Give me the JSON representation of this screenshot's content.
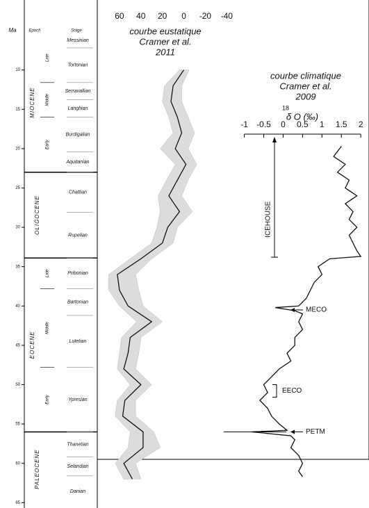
{
  "stratigraphy": {
    "headers": {
      "age": "Ma",
      "epoch": "Epoch",
      "stage": "Stage"
    },
    "ylim": [
      4.2,
      65.5
    ],
    "ticks": [
      10,
      15,
      20,
      25,
      30,
      35,
      40,
      45,
      50,
      55,
      60,
      65
    ],
    "epochs": [
      {
        "name": "MIOCENE",
        "top": 5.3,
        "bottom": 23,
        "subs": [
          {
            "name": "Late",
            "top": 5.3,
            "bottom": 11.6
          },
          {
            "name": "Middle",
            "top": 11.6,
            "bottom": 16
          },
          {
            "name": "Early",
            "top": 16,
            "bottom": 23
          }
        ]
      },
      {
        "name": "OLIGOCENE",
        "top": 23,
        "bottom": 33.9,
        "subs": []
      },
      {
        "name": "EOCENE",
        "top": 33.9,
        "bottom": 56,
        "subs": [
          {
            "name": "Late",
            "top": 33.9,
            "bottom": 37.8
          },
          {
            "name": "Middle",
            "top": 37.8,
            "bottom": 47.8
          },
          {
            "name": "Early",
            "top": 47.8,
            "bottom": 56
          }
        ]
      },
      {
        "name": "PALEOCENE",
        "top": 56,
        "bottom": 65.5,
        "subs": []
      }
    ],
    "stages": [
      {
        "name": "Messinian",
        "top": 5.3,
        "bottom": 7.2
      },
      {
        "name": "Tortonian",
        "top": 7.2,
        "bottom": 11.6
      },
      {
        "name": "Serravallian",
        "top": 11.6,
        "bottom": 13.8
      },
      {
        "name": "Langhian",
        "top": 13.8,
        "bottom": 16
      },
      {
        "name": "Burdigalian",
        "top": 16,
        "bottom": 20.4
      },
      {
        "name": "Aquitanian",
        "top": 20.4,
        "bottom": 23
      },
      {
        "name": "Chattian",
        "top": 23,
        "bottom": 28.1
      },
      {
        "name": "Rupelian",
        "top": 28.1,
        "bottom": 33.9
      },
      {
        "name": "Pribonian",
        "top": 33.9,
        "bottom": 37.8
      },
      {
        "name": "Bartonian",
        "top": 37.8,
        "bottom": 41.2
      },
      {
        "name": "Lutetian",
        "top": 41.2,
        "bottom": 47.8
      },
      {
        "name": "Ypresian",
        "top": 47.8,
        "bottom": 56
      },
      {
        "name": "Thanetian",
        "top": 56,
        "bottom": 59.2
      },
      {
        "name": "Selandian",
        "top": 59.2,
        "bottom": 61.6
      },
      {
        "name": "Danian",
        "top": 61.6,
        "bottom": 65.5
      }
    ]
  },
  "chart_data": [
    {
      "type": "line",
      "title": [
        "courbe eustatique",
        "Cramer et al.",
        "2011"
      ],
      "xlim": [
        70,
        -45
      ],
      "xticks": [
        60,
        40,
        20,
        0,
        -20,
        -40
      ],
      "color": "#111",
      "band_color": "#dcdcdc",
      "ages": [
        10,
        12,
        14,
        16,
        18,
        20,
        22,
        24,
        26,
        28,
        30,
        32,
        34,
        36,
        38,
        40,
        42,
        44,
        46,
        48,
        50,
        52,
        54,
        56,
        58,
        60,
        62
      ],
      "values": [
        0,
        10,
        12,
        6,
        2,
        8,
        -2,
        6,
        14,
        4,
        15,
        20,
        40,
        62,
        60,
        52,
        30,
        50,
        52,
        56,
        40,
        55,
        57,
        38,
        38,
        56,
        48
      ],
      "band_low": [
        -5,
        2,
        2,
        -4,
        -10,
        -4,
        -12,
        -4,
        2,
        -8,
        6,
        10,
        30,
        45,
        42,
        38,
        20,
        40,
        42,
        45,
        30,
        45,
        45,
        28,
        22,
        45,
        40
      ],
      "band_high": [
        4,
        18,
        20,
        14,
        10,
        22,
        8,
        16,
        24,
        22,
        25,
        30,
        50,
        70,
        70,
        60,
        44,
        58,
        60,
        62,
        50,
        62,
        64,
        50,
        52,
        64,
        56
      ]
    },
    {
      "type": "line",
      "title": [
        "courbe climatique",
        "Cramer et al.",
        "2009"
      ],
      "axis_label": {
        "superscript": "18",
        "text": "δ O (‰)"
      },
      "xlim": [
        -1.1,
        2.05
      ],
      "xticks": [
        -1,
        -0.5,
        0,
        0.5,
        1,
        1.5,
        2
      ],
      "color": "#111",
      "ages": [
        19.7,
        21,
        22,
        23,
        24,
        25,
        26,
        27,
        28,
        29,
        30,
        31,
        32,
        33,
        33.7,
        34,
        35,
        36,
        37,
        38,
        39,
        40,
        40.2,
        40.6,
        41,
        42,
        43,
        44,
        45,
        46,
        47,
        48,
        49,
        50,
        51,
        52,
        53,
        54,
        55,
        55.8,
        56,
        56.5,
        57,
        58,
        59,
        60,
        61,
        61.7
      ],
      "values": [
        1.5,
        1.3,
        1.6,
        1.4,
        1.7,
        1.6,
        1.9,
        1.6,
        1.8,
        1.7,
        1.9,
        1.7,
        1.8,
        1.9,
        2.0,
        1.2,
        0.9,
        1.0,
        0.8,
        0.7,
        0.6,
        0.4,
        -0.2,
        0.3,
        0.5,
        0.4,
        0.5,
        0.3,
        0.3,
        0.1,
        0.2,
        -0.1,
        -0.3,
        -0.5,
        -0.4,
        -0.6,
        -0.4,
        -0.3,
        -0.1,
        0.1,
        -0.8,
        0.2,
        0.3,
        0.2,
        0.4,
        0.5,
        0.4,
        0.5
      ],
      "annotations": [
        "ICEHOUSE",
        "MECO",
        "EECO",
        "PETM"
      ]
    }
  ]
}
